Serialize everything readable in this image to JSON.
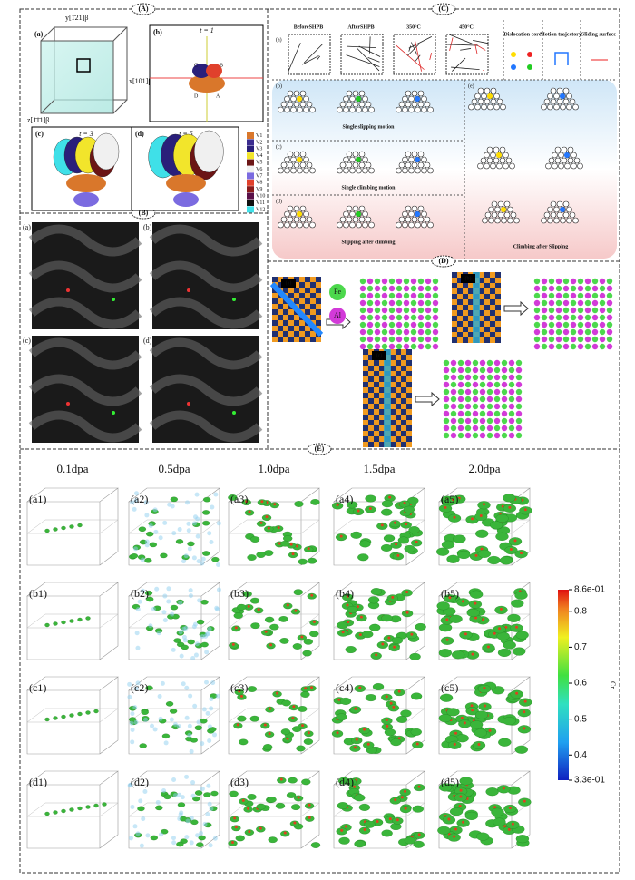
{
  "panels": {
    "A": {
      "label": "(A)",
      "axes": {
        "y": "y[1̄21]β",
        "x": "x[101]β",
        "z": "z[1̄1̄1]β"
      },
      "subpanels": [
        {
          "label": "(a)"
        },
        {
          "label": "(b)",
          "title": "t = 1"
        },
        {
          "label": "(c)",
          "title": "t = 3"
        },
        {
          "label": "(d)",
          "title": "t = 5"
        }
      ],
      "points": [
        "A",
        "B",
        "C",
        "D"
      ],
      "legend": [
        {
          "name": "V1",
          "color": "#d9772b"
        },
        {
          "name": "V2",
          "color": "#3b2c8f"
        },
        {
          "name": "V3",
          "color": "#2a1f7a"
        },
        {
          "name": "V4",
          "color": "#f2e52b"
        },
        {
          "name": "V5",
          "color": "#6b1515"
        },
        {
          "name": "V6",
          "color": "#f0f0f0"
        },
        {
          "name": "V7",
          "color": "#7b6be0"
        },
        {
          "name": "V8",
          "color": "#e0412c"
        },
        {
          "name": "V9",
          "color": "#8a1b1b"
        },
        {
          "name": "V10",
          "color": "#5a1048"
        },
        {
          "name": "V11",
          "color": "#111111"
        },
        {
          "name": "V12",
          "color": "#3fe0e8"
        }
      ]
    },
    "B": {
      "label": "(B)",
      "subpanels": [
        "(a)",
        "(b)",
        "(c)",
        "(d)"
      ]
    },
    "C": {
      "label": "(C)",
      "top": {
        "label": "(a)",
        "images": [
          "BeforeSHPB",
          "AfterSHPB",
          "350°C",
          "450°C"
        ],
        "keys": [
          "Dislocation core",
          "Motion trajectory",
          "Sliding surface"
        ]
      },
      "rows": [
        {
          "label": "(b)",
          "caption": "Single slipping motion"
        },
        {
          "label": "(c)",
          "caption": "Single climbing motion"
        },
        {
          "label": "(d)",
          "caption": "Slipping after climbing"
        }
      ],
      "right": {
        "label": "(e)",
        "caption": "Climbing after Slipping"
      }
    },
    "D": {
      "label": "(D)",
      "subpanels": [
        "(a)",
        "(b)",
        "(c)"
      ],
      "elements": [
        "Fe",
        "Al"
      ]
    },
    "E": {
      "label": "(E)",
      "columns": [
        "0.1dpa",
        "0.5dpa",
        "1.0dpa",
        "1.5dpa",
        "2.0dpa"
      ],
      "cells": [
        [
          "(a1)",
          "(a2)",
          "(a3)",
          "(a4)",
          "(a5)"
        ],
        [
          "(b1)",
          "(b2)",
          "(b3)",
          "(b4)",
          "(b5)"
        ],
        [
          "(c1)",
          "(c2)",
          "(c3)",
          "(c4)",
          "(c5)"
        ],
        [
          "(d1)",
          "(d2)",
          "(d3)",
          "(d4)",
          "(d5)"
        ]
      ],
      "colorbar": {
        "title": "Cr",
        "lim": [
          0.33,
          0.86
        ],
        "ticks": [
          {
            "value": 0.86,
            "label": "8.6e-01"
          },
          0.8,
          0.7,
          0.6,
          0.5,
          0.4,
          {
            "value": 0.33,
            "label": "3.3e-01"
          }
        ]
      }
    }
  }
}
